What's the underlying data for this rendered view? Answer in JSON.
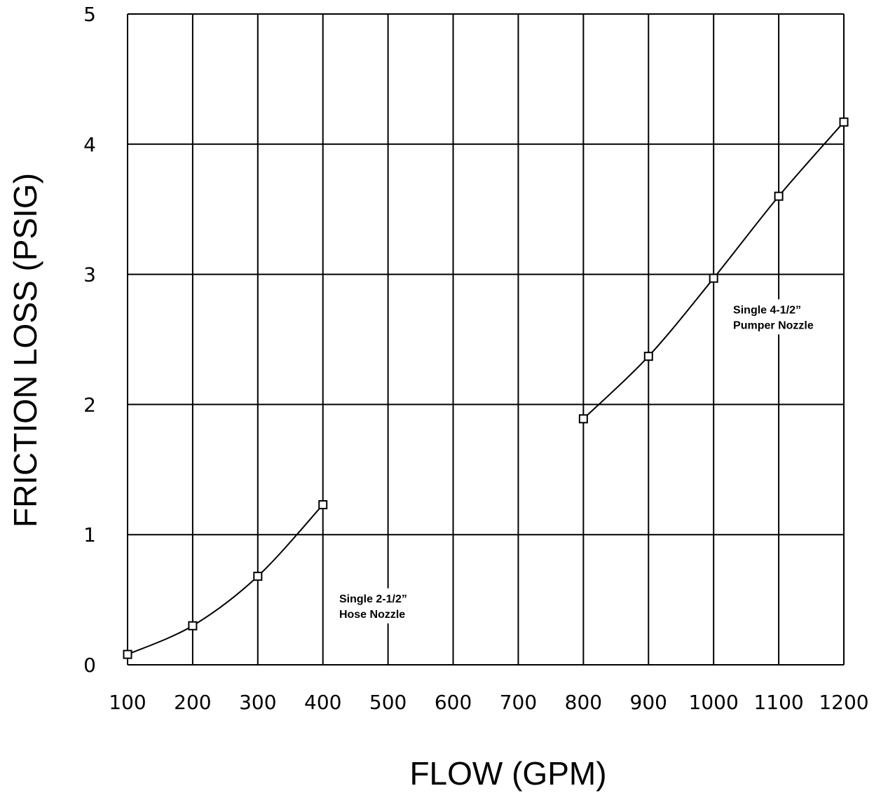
{
  "chart_data": {
    "type": "line",
    "xlabel": "FLOW (GPM)",
    "ylabel": "FRICTION LOSS (PSIG)",
    "xlim": [
      100,
      1200
    ],
    "ylim": [
      0,
      5
    ],
    "x_ticks": [
      "100",
      "200",
      "300",
      "400",
      "500",
      "600",
      "700",
      "800",
      "900",
      "1000",
      "1100",
      "1200"
    ],
    "y_ticks": [
      "0",
      "1",
      "2",
      "3",
      "4",
      "5"
    ],
    "grid": true,
    "series": [
      {
        "x": [
          100,
          200,
          300,
          400
        ],
        "y": [
          0.08,
          0.3,
          0.68,
          1.23
        ],
        "marker": "square"
      },
      {
        "x": [
          800,
          900,
          1000,
          1100,
          1200
        ],
        "y": [
          1.89,
          2.37,
          2.97,
          3.6,
          4.17
        ],
        "marker": "square"
      }
    ],
    "annotations": [
      {
        "lines": [
          "Single  2-1/2”",
          "Hose Nozzle"
        ],
        "x": 425,
        "y": 0.48
      },
      {
        "lines": [
          "Single  4-1/2”",
          "Pumper Nozzle"
        ],
        "x": 1030,
        "y": 2.7
      }
    ]
  }
}
